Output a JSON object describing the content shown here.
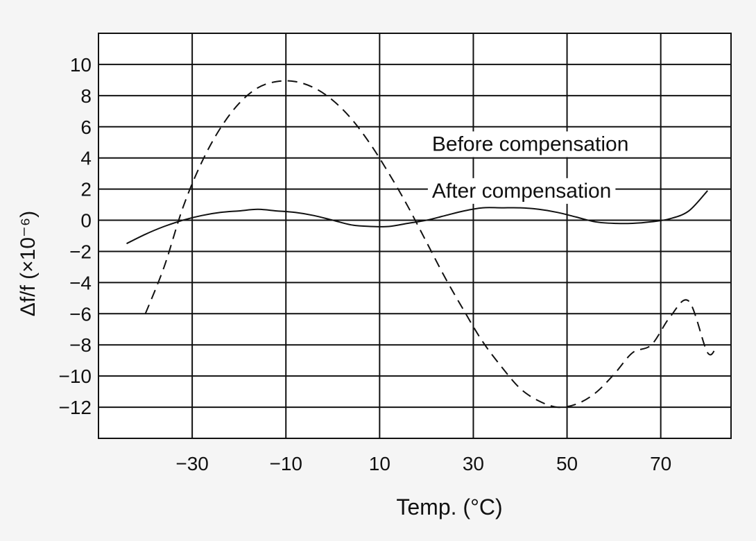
{
  "chart_data": {
    "type": "line",
    "xlabel": "Temp. (°C)",
    "ylabel": "Δf/f (×10⁻⁶)",
    "xlim": [
      -50,
      85
    ],
    "ylim": [
      -14,
      12
    ],
    "x_ticks": [
      -30,
      -10,
      10,
      30,
      50,
      70
    ],
    "x_tick_labels": [
      "−30",
      "−10",
      "10",
      "30",
      "50",
      "70"
    ],
    "y_ticks": [
      10,
      8,
      6,
      4,
      2,
      0,
      -2,
      -4,
      -6,
      -8,
      -10,
      -12
    ],
    "y_tick_labels": [
      "10",
      "8",
      "6",
      "4",
      "2",
      "0",
      "−2",
      "−4",
      "−6",
      "−8",
      "−10",
      "−12"
    ],
    "grid": true,
    "legend_position": "none",
    "series": [
      {
        "name": "Before compensation",
        "style": "dashed",
        "color": "#111111",
        "label_at": [
          20,
          4.9
        ],
        "x": [
          -40,
          -36,
          -32,
          -28,
          -24,
          -20,
          -16,
          -12,
          -8,
          -4,
          0,
          4,
          8,
          12,
          16,
          20,
          24,
          28,
          32,
          36,
          40,
          44,
          48,
          52,
          56,
          60,
          64,
          68,
          72,
          76,
          80,
          82
        ],
        "y": [
          -6.0,
          -3.0,
          0.8,
          3.7,
          5.9,
          7.5,
          8.5,
          8.9,
          8.9,
          8.5,
          7.7,
          6.5,
          4.9,
          3.0,
          0.9,
          -1.4,
          -3.7,
          -5.8,
          -7.8,
          -9.4,
          -10.8,
          -11.6,
          -12.0,
          -11.8,
          -11.1,
          -9.9,
          -8.5,
          -8.0,
          -6.2,
          -5.2,
          -8.5,
          -8.0
        ]
      },
      {
        "name": "After compensation",
        "style": "solid",
        "color": "#111111",
        "label_at": [
          20,
          1.9
        ],
        "x": [
          -44,
          -40,
          -36,
          -32,
          -28,
          -24,
          -20,
          -16,
          -12,
          -8,
          -4,
          0,
          4,
          8,
          12,
          16,
          20,
          24,
          28,
          32,
          36,
          40,
          44,
          48,
          52,
          56,
          60,
          64,
          68,
          72,
          76,
          80
        ],
        "y": [
          -1.5,
          -0.9,
          -0.4,
          0.0,
          0.3,
          0.5,
          0.6,
          0.7,
          0.6,
          0.5,
          0.3,
          0.0,
          -0.3,
          -0.4,
          -0.4,
          -0.2,
          0.0,
          0.3,
          0.6,
          0.8,
          0.8,
          0.8,
          0.7,
          0.5,
          0.2,
          -0.1,
          -0.2,
          -0.2,
          -0.1,
          0.1,
          0.6,
          1.9
        ]
      }
    ]
  }
}
